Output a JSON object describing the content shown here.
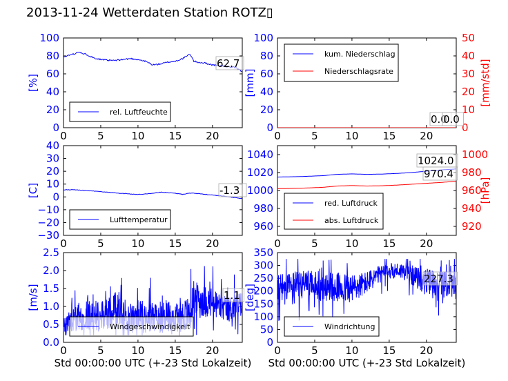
{
  "title": "2013-11-24 Wetterdaten Station ROTZ\u0000",
  "title_display": "2013-11-24 Wetterdaten Station ROTZ▯",
  "colors": {
    "blue": "#0000ff",
    "red": "#ff0000",
    "lightblue": "#8080ff",
    "black": "#000000"
  },
  "chart_data": [
    {
      "id": "humidity",
      "type": "line",
      "ylabel": "[%]",
      "xlabel": "",
      "xlim": [
        0,
        24
      ],
      "ylim": [
        0,
        100
      ],
      "xticks": [
        "0",
        "5",
        "10",
        "15",
        "20"
      ],
      "yticks": [
        "0",
        "20",
        "40",
        "60",
        "80",
        "100"
      ],
      "last_value_label": "62.7",
      "legend": {
        "placement": "lower-left",
        "entries": [
          "rel. Luftfeuchte"
        ]
      },
      "series": [
        {
          "name": "rel. Luftfeuchte",
          "color": "#0000ff",
          "x": [
            0,
            1,
            2,
            3,
            4,
            5,
            6,
            7,
            8,
            9,
            10,
            11,
            12,
            13,
            14,
            15,
            16,
            17,
            17.5,
            18,
            19,
            20,
            21,
            22,
            23,
            24
          ],
          "y": [
            79,
            81,
            84,
            82,
            78,
            76,
            75,
            75,
            76,
            77,
            76,
            74,
            70,
            71,
            73,
            74,
            77,
            82,
            74,
            73,
            72,
            70,
            69,
            68,
            67,
            62.7
          ]
        }
      ]
    },
    {
      "id": "precipitation",
      "type": "line",
      "ylabel": "[mm]",
      "y2label": "[mm/std]",
      "xlabel": "",
      "xlim": [
        0,
        24
      ],
      "ylim": [
        0,
        100
      ],
      "y2lim": [
        0,
        50
      ],
      "xticks": [
        "0",
        "5",
        "10",
        "15",
        "20"
      ],
      "yticks": [
        "0",
        "20",
        "40",
        "60",
        "80",
        "100"
      ],
      "y2ticks": [
        "0",
        "10",
        "20",
        "30",
        "40",
        "50"
      ],
      "last_value_labels": [
        "0.0",
        "0.0"
      ],
      "legend": {
        "placement": "upper-left",
        "entries": [
          "kum. Niederschlag",
          "Niederschlagsrate"
        ]
      },
      "series": [
        {
          "name": "kum. Niederschlag",
          "color": "#0000ff",
          "x": [
            0,
            24
          ],
          "y": [
            0,
            0
          ]
        },
        {
          "name": "Niederschlagsrate",
          "color": "#ff0000",
          "axis": "right",
          "x": [
            0,
            24
          ],
          "y": [
            0,
            0
          ]
        }
      ]
    },
    {
      "id": "temperature",
      "type": "line",
      "ylabel": "[C]",
      "xlabel": "",
      "xlim": [
        0,
        24
      ],
      "ylim": [
        -30,
        40
      ],
      "xticks": [
        "0",
        "5",
        "10",
        "15",
        "20"
      ],
      "yticks": [
        "−30",
        "−20",
        "−10",
        "0",
        "10",
        "20",
        "30",
        "40"
      ],
      "last_value_label": "-1.3",
      "legend": {
        "placement": "lower-left",
        "entries": [
          "Lufttemperatur"
        ]
      },
      "series": [
        {
          "name": "Lufttemperatur",
          "color": "#0000ff",
          "x": [
            0,
            1,
            2,
            3,
            4,
            5,
            6,
            7,
            8,
            9,
            10,
            11,
            12,
            13,
            14,
            15,
            16,
            17,
            18,
            19,
            20,
            21,
            22,
            23,
            24
          ],
          "y": [
            5.5,
            5.6,
            5.4,
            5.0,
            4.6,
            4.0,
            3.6,
            3.1,
            2.7,
            2.2,
            1.9,
            2.2,
            2.9,
            3.7,
            3.3,
            2.9,
            2.0,
            3.0,
            2.6,
            2.0,
            1.4,
            0.9,
            0.2,
            -0.6,
            -1.3
          ]
        }
      ]
    },
    {
      "id": "pressure",
      "type": "line",
      "ylabel": "",
      "y2label": "[hPa]",
      "xlabel": "",
      "xlim": [
        0,
        24
      ],
      "ylim": [
        950,
        1050
      ],
      "y2lim": [
        910,
        1010
      ],
      "xticks": [
        "0",
        "5",
        "10",
        "15",
        "20"
      ],
      "yticks": [
        "960",
        "980",
        "1000",
        "1020",
        "1040"
      ],
      "y2ticks": [
        "920",
        "940",
        "960",
        "980",
        "1000"
      ],
      "last_value_labels": [
        "1024.0",
        "970.4"
      ],
      "legend": {
        "placement": "lower-left",
        "entries": [
          "red. Luftdruck",
          "abs. Luftdruck"
        ]
      },
      "series": [
        {
          "name": "red. Luftdruck",
          "color": "#0000ff",
          "x": [
            0,
            3,
            6,
            8,
            10,
            12,
            14,
            16,
            18,
            20,
            22,
            24
          ],
          "y": [
            1015,
            1015.5,
            1016.5,
            1018,
            1018.5,
            1018,
            1018.3,
            1019,
            1020,
            1021.5,
            1023,
            1024.0
          ]
        },
        {
          "name": "abs. Luftdruck",
          "color": "#ff0000",
          "axis": "right",
          "x": [
            0,
            3,
            6,
            8,
            10,
            12,
            14,
            16,
            18,
            20,
            22,
            24
          ],
          "y": [
            962,
            962.5,
            963.5,
            965,
            965.5,
            965,
            965.3,
            966,
            967,
            968,
            969,
            970.4
          ]
        }
      ]
    },
    {
      "id": "windspeed",
      "type": "line",
      "ylabel": "[m/s]",
      "xlabel": "Std 00:00:00 UTC (+-23 Std Lokalzeit)",
      "xlim": [
        0,
        24
      ],
      "ylim": [
        0,
        2.5
      ],
      "xticks": [
        "0",
        "5",
        "10",
        "15",
        "20"
      ],
      "yticks": [
        "0.0",
        "0.5",
        "1.0",
        "1.5",
        "2.0",
        "2.5"
      ],
      "last_value_label": "1.1",
      "legend": {
        "placement": "lower-left",
        "entries": [
          "Windgeschwindigkeit"
        ]
      },
      "series": [
        {
          "name": "Windgeschwindigkeit",
          "color": "#0000ff",
          "noisy": true,
          "x": [
            0,
            1,
            2,
            3,
            4,
            5,
            6,
            7,
            8,
            9,
            10,
            11,
            12,
            13,
            14,
            15,
            16,
            17,
            17.5,
            18,
            19,
            20,
            21,
            22,
            23,
            24
          ],
          "base": [
            0.5,
            0.6,
            0.7,
            0.8,
            0.75,
            0.7,
            0.85,
            0.9,
            0.8,
            0.7,
            0.75,
            0.7,
            0.75,
            0.7,
            0.75,
            0.7,
            0.75,
            0.8,
            1.3,
            1.2,
            1.15,
            1.1,
            1.0,
            0.9,
            1.0,
            1.1
          ],
          "amp": [
            0.25,
            0.3,
            0.4,
            0.45,
            0.45,
            0.4,
            0.5,
            0.5,
            0.45,
            0.4,
            0.45,
            0.45,
            0.45,
            0.45,
            0.45,
            0.45,
            0.45,
            0.5,
            0.45,
            0.45,
            0.45,
            0.45,
            0.4,
            0.35,
            0.4,
            0.3
          ]
        }
      ]
    },
    {
      "id": "winddirection",
      "type": "line",
      "ylabel": "[deg]",
      "xlabel": "Std 00:00:00 UTC (+-23 Std Lokalzeit)",
      "xlim": [
        0,
        24
      ],
      "ylim": [
        0,
        360
      ],
      "xticks": [
        "0",
        "5",
        "10",
        "15",
        "20"
      ],
      "yticks": [
        "0",
        "50",
        "100",
        "150",
        "200",
        "250",
        "300",
        "350"
      ],
      "last_value_label": "227.3",
      "legend": {
        "placement": "lower-left",
        "entries": [
          "Windrichtung"
        ]
      },
      "series": [
        {
          "name": "Windrichtung",
          "color": "#0000ff",
          "noisy": true,
          "x": [
            0,
            2,
            4,
            6,
            8,
            10,
            12,
            13,
            14,
            15,
            16,
            17,
            18,
            19,
            20,
            21,
            22,
            23,
            24
          ],
          "base": [
            215,
            225,
            230,
            225,
            220,
            215,
            240,
            260,
            275,
            285,
            290,
            285,
            270,
            255,
            245,
            240,
            235,
            230,
            227
          ],
          "amp": [
            55,
            60,
            60,
            60,
            60,
            60,
            45,
            40,
            35,
            35,
            30,
            35,
            40,
            45,
            50,
            55,
            55,
            50,
            45
          ]
        }
      ]
    }
  ]
}
